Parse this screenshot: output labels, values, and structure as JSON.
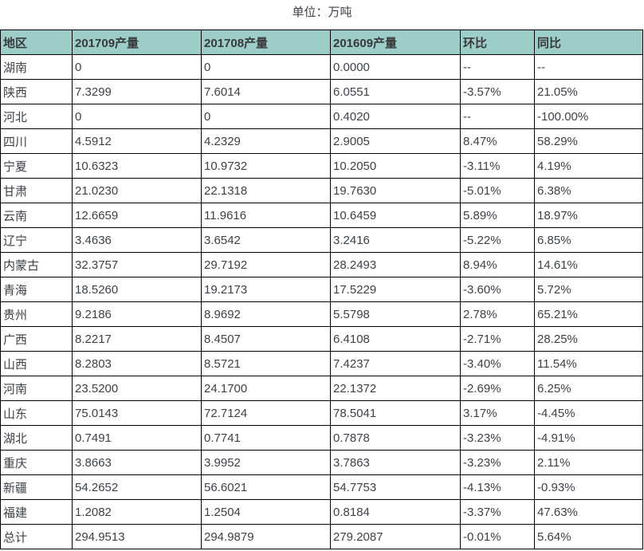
{
  "title": "单位：万吨",
  "colors": {
    "header_bg": "#9dcdc8",
    "border_color": "#000000",
    "text_color": "#3d4247",
    "header_text": "#39393b"
  },
  "chart_data": {
    "type": "table",
    "title": "单位：万吨",
    "columns": [
      "地区",
      "201709产量",
      "201708产量",
      "201609产量",
      "环比",
      "同比"
    ],
    "rows": [
      [
        "湖南",
        "0",
        "0",
        "0.0000",
        "--",
        "--"
      ],
      [
        "陕西",
        "7.3299",
        "7.6014",
        "6.0551",
        "-3.57%",
        "21.05%"
      ],
      [
        "河北",
        "0",
        "0",
        "0.4020",
        "--",
        "-100.00%"
      ],
      [
        "四川",
        "4.5912",
        "4.2329",
        "2.9005",
        "8.47%",
        "58.29%"
      ],
      [
        "宁夏",
        "10.6323",
        "10.9732",
        "10.2050",
        "-3.11%",
        "4.19%"
      ],
      [
        "甘肃",
        "21.0230",
        "22.1318",
        "19.7630",
        "-5.01%",
        "6.38%"
      ],
      [
        "云南",
        "12.6659",
        "11.9616",
        "10.6459",
        "5.89%",
        "18.97%"
      ],
      [
        "辽宁",
        "3.4636",
        "3.6542",
        "3.2416",
        "-5.22%",
        "6.85%"
      ],
      [
        "内蒙古",
        "32.3757",
        "29.7192",
        "28.2493",
        "8.94%",
        "14.61%"
      ],
      [
        "青海",
        "18.5260",
        "19.2173",
        "17.5229",
        "-3.60%",
        "5.72%"
      ],
      [
        "贵州",
        "9.2186",
        "8.9692",
        "5.5798",
        "2.78%",
        "65.21%"
      ],
      [
        "广西",
        "8.2217",
        "8.4507",
        "6.4108",
        "-2.71%",
        "28.25%"
      ],
      [
        "山西",
        "8.2803",
        "8.5721",
        "7.4237",
        "-3.40%",
        "11.54%"
      ],
      [
        "河南",
        "23.5200",
        "24.1700",
        "22.1372",
        "-2.69%",
        "6.25%"
      ],
      [
        "山东",
        "75.0143",
        "72.7124",
        "78.5041",
        "3.17%",
        "-4.45%"
      ],
      [
        "湖北",
        "0.7491",
        "0.7741",
        "0.7878",
        "-3.23%",
        "-4.91%"
      ],
      [
        "重庆",
        "3.8663",
        "3.9952",
        "3.7863",
        "-3.23%",
        "2.11%"
      ],
      [
        "新疆",
        "54.2652",
        "56.6021",
        "54.7753",
        "-4.13%",
        "-0.93%"
      ],
      [
        "福建",
        "1.2082",
        "1.2504",
        "0.8184",
        "-3.37%",
        "47.63%"
      ],
      [
        "总计",
        "294.9513",
        "294.9879",
        "279.2087",
        "-0.01%",
        "5.64%"
      ]
    ]
  }
}
